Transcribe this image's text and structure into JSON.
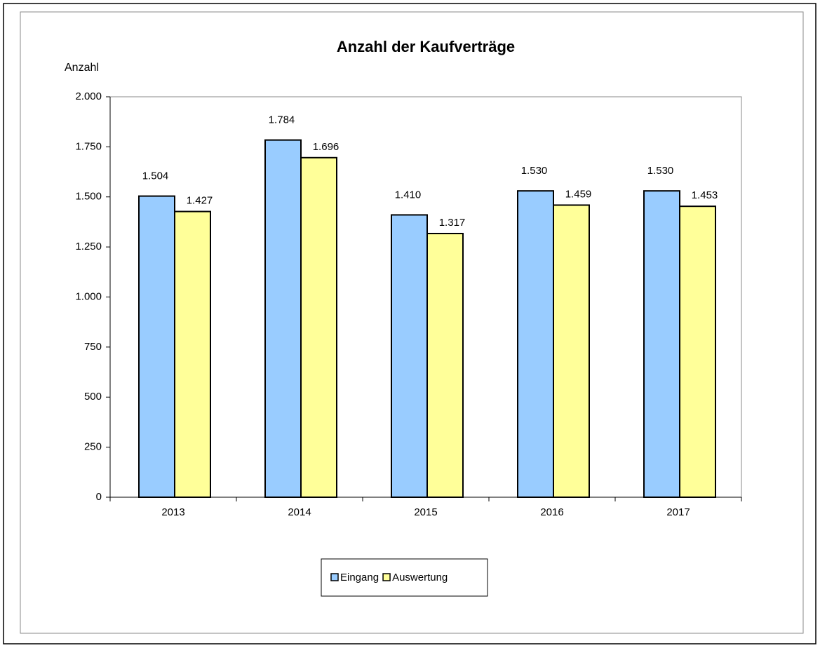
{
  "chart_data": {
    "type": "bar",
    "title": "Anzahl der Kaufverträge",
    "y_label": "Anzahl",
    "categories": [
      "2013",
      "2014",
      "2015",
      "2016",
      "2017"
    ],
    "series": [
      {
        "name": "Eingang",
        "color": "#99ccff",
        "values": [
          1504,
          1784,
          1410,
          1530,
          1530
        ],
        "value_labels": [
          "1.504",
          "1.784",
          "1.410",
          "1.530",
          "1.530"
        ]
      },
      {
        "name": "Auswertung",
        "color": "#ffff99",
        "values": [
          1427,
          1696,
          1317,
          1459,
          1453
        ],
        "value_labels": [
          "1.427",
          "1.696",
          "1.317",
          "1.459",
          "1.453"
        ]
      }
    ],
    "ylim": [
      0,
      2000
    ],
    "yticks": [
      {
        "value": 0,
        "label": "0"
      },
      {
        "value": 250,
        "label": "250"
      },
      {
        "value": 500,
        "label": "500"
      },
      {
        "value": 750,
        "label": "750"
      },
      {
        "value": 1000,
        "label": "1.000"
      },
      {
        "value": 1250,
        "label": "1.250"
      },
      {
        "value": 1500,
        "label": "1.500"
      },
      {
        "value": 1750,
        "label": "1.750"
      },
      {
        "value": 2000,
        "label": "2.000"
      }
    ],
    "legend": "bottom"
  }
}
